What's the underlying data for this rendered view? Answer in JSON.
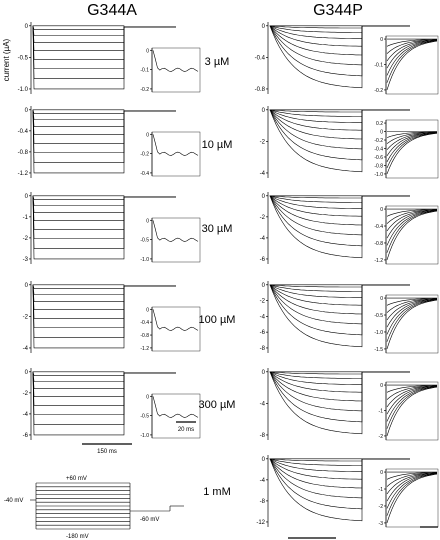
{
  "figure": {
    "left_title": "G344A",
    "right_title": "G344P",
    "ylabel": "current (µA)"
  },
  "scale_bars": {
    "main": "150 ms",
    "inset": "20 ms"
  },
  "protocol": {
    "holding": "-40 mV",
    "top": "+60 mV",
    "bottom": "-180 mV",
    "tail": "-60 mV"
  },
  "rows": [
    {
      "conc": "3 µM",
      "left": {
        "ticks": [
          "0",
          "-0.5",
          "-1.0"
        ],
        "ylim": [
          -1.0,
          0.05
        ],
        "inset": {
          "ticks": [
            "0",
            "-0.1",
            "-0.2"
          ]
        }
      },
      "right": {
        "ticks": [
          "0",
          "-0.4",
          "-0.8"
        ],
        "ylim": [
          -0.9,
          0.05
        ],
        "inset": {
          "ticks": [
            "0",
            "-0.1",
            "-0.2"
          ]
        }
      }
    },
    {
      "conc": "10 µM",
      "left": {
        "ticks": [
          "0",
          "-0.4",
          "-0.8",
          "-1.2"
        ],
        "ylim": [
          -1.25,
          0.05
        ],
        "inset": {
          "ticks": [
            "0",
            "-0.2",
            "-0.4"
          ]
        }
      },
      "right": {
        "ticks": [
          "0",
          "-2",
          "-4"
        ],
        "ylim": [
          -4.0,
          0.2
        ],
        "inset": {
          "ticks": [
            "0.2",
            "0",
            "-0.2",
            "-0.4",
            "-0.6",
            "-0.8",
            "-1.0"
          ]
        }
      }
    },
    {
      "conc": "30 µM",
      "left": {
        "ticks": [
          "0",
          "-1",
          "-2",
          "-3"
        ],
        "ylim": [
          -3.2,
          0.2
        ],
        "inset": {
          "ticks": [
            "0",
            "-0.5",
            "-1.0"
          ]
        }
      },
      "right": {
        "ticks": [
          "0",
          "-2",
          "-4",
          "-6"
        ],
        "ylim": [
          -6.5,
          0.3
        ],
        "inset": {
          "ticks": [
            "0",
            "-0.4",
            "-0.8",
            "-1.2"
          ]
        }
      }
    },
    {
      "conc": "100 µM",
      "left": {
        "ticks": [
          "0",
          "-2",
          "-4"
        ],
        "ylim": [
          -4.6,
          0.3
        ],
        "inset": {
          "ticks": [
            "0",
            "-0.4",
            "-0.8",
            "-1.2"
          ]
        }
      },
      "right": {
        "ticks": [
          "0",
          "-2",
          "-4",
          "-6",
          "-8"
        ],
        "ylim": [
          -8.5,
          0.4
        ],
        "inset": {
          "ticks": [
            "0",
            "-0.5",
            "-1.0",
            "-1.5"
          ]
        }
      }
    },
    {
      "conc": "300 µM",
      "left": {
        "ticks": [
          "0",
          "-2",
          "-4",
          "-6"
        ],
        "ylim": [
          -6.4,
          0.8
        ],
        "inset": {
          "ticks": [
            "0",
            "-0.5",
            "-1.0"
          ]
        }
      },
      "right": {
        "ticks": [
          "0",
          "-4",
          "-8"
        ],
        "ylim": [
          -9.5,
          0.4
        ],
        "inset": {
          "ticks": [
            "0",
            "-1",
            "-2"
          ]
        }
      }
    },
    {
      "conc": "1 mM",
      "left": null,
      "right": {
        "ticks": [
          "0",
          "-4",
          "-8",
          "-12"
        ],
        "ylim": [
          -12.5,
          0.5
        ],
        "inset": {
          "ticks": [
            "0",
            "-1",
            "-2",
            "-3"
          ]
        }
      }
    }
  ]
}
